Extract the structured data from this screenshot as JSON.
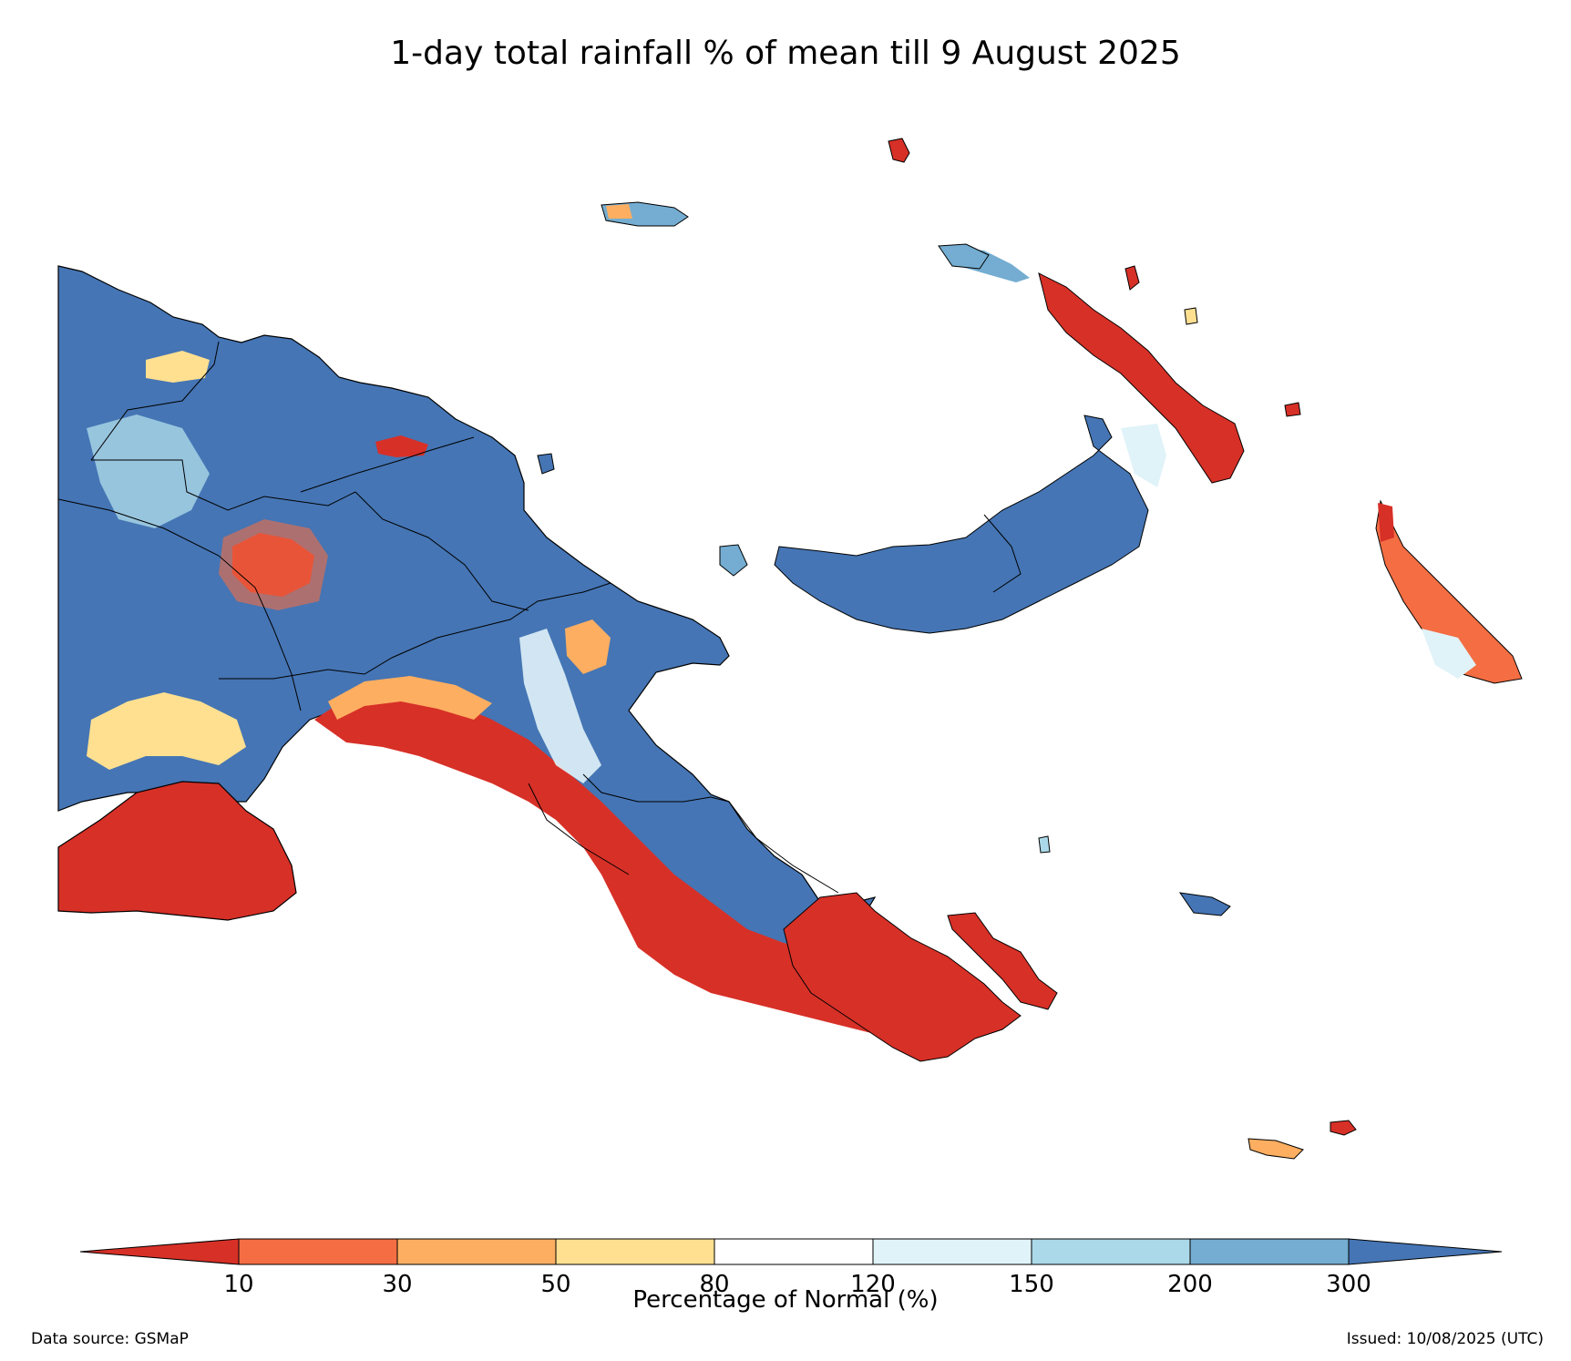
{
  "title": "1-day total rainfall % of mean till 9 August 2025",
  "legend": {
    "label": "Percentage of Normal (%)",
    "ticks": [
      "10",
      "30",
      "50",
      "80",
      "120",
      "150",
      "200",
      "300"
    ],
    "colors": {
      "lt10": "#d73027",
      "10-30": "#f46d43",
      "30-50": "#fdae61",
      "50-80": "#fee090",
      "80-120": "#ffffff",
      "120-150": "#e0f3f8",
      "150-200": "#abd9e9",
      "200-300": "#74add1",
      "gt300": "#4575b4"
    }
  },
  "footer": {
    "data_source": "Data source: GSMaP",
    "issued": "Issued: 10/08/2025 (UTC)"
  }
}
